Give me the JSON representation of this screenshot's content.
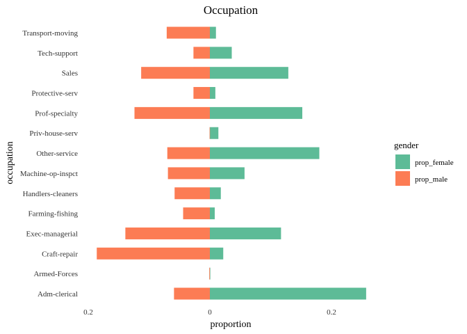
{
  "chart_data": {
    "type": "bar",
    "orientation": "horizontal",
    "title": "Occupation",
    "xlabel": "proportion",
    "ylabel": "occupation",
    "xlim": [
      -0.2,
      0.27
    ],
    "x_ticks": [
      {
        "value": -0.2,
        "label": "0.2"
      },
      {
        "value": 0,
        "label": "0"
      },
      {
        "value": 0.2,
        "label": "0.2"
      }
    ],
    "grid": false,
    "legend_position": "right",
    "legend_title": "gender",
    "categories": [
      "Adm-clerical",
      "Armed-Forces",
      "Craft-repair",
      "Exec-managerial",
      "Farming-fishing",
      "Handlers-cleaners",
      "Machine-op-inspct",
      "Other-service",
      "Priv-house-serv",
      "Prof-specialty",
      "Protective-serv",
      "Sales",
      "Tech-support",
      "Transport-moving"
    ],
    "series": [
      {
        "name": "prop_female",
        "color": "#5dbb97",
        "values": [
          0.257,
          0.0003,
          0.022,
          0.117,
          0.008,
          0.018,
          0.057,
          0.18,
          0.014,
          0.152,
          0.009,
          0.129,
          0.036,
          0.01
        ]
      },
      {
        "name": "prop_male",
        "color": "#fc7c54",
        "values": [
          -0.059,
          -0.001,
          -0.186,
          -0.139,
          -0.044,
          -0.058,
          -0.069,
          -0.07,
          -0.0005,
          -0.124,
          -0.027,
          -0.113,
          -0.027,
          -0.071
        ]
      }
    ]
  }
}
